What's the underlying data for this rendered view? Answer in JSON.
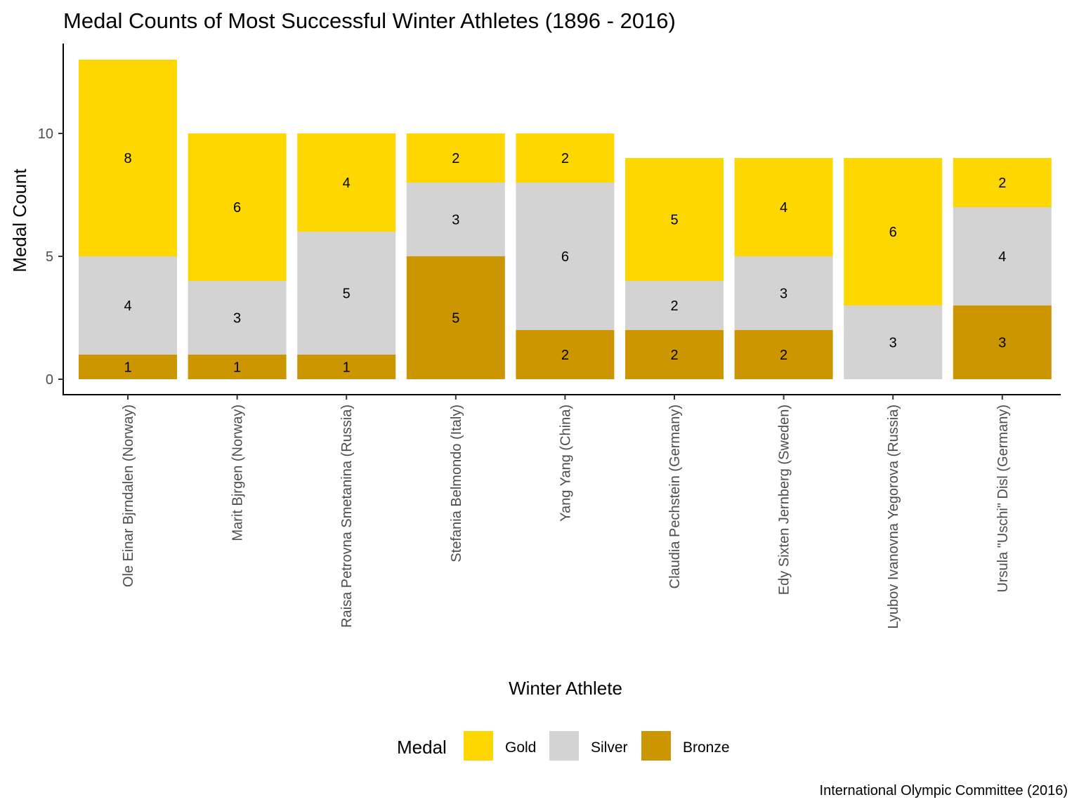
{
  "chart_data": {
    "type": "bar",
    "stacked": true,
    "title": "Medal Counts of Most Successful Winter Athletes (1896 - 2016)",
    "xlabel": "Winter Athlete",
    "ylabel": "Medal Count",
    "caption": "International Olympic Committee (2016)",
    "ylim": [
      0,
      13
    ],
    "yticks": [
      0,
      5,
      10
    ],
    "grid": false,
    "legend": {
      "title": "Medal",
      "position": "bottom"
    },
    "categories": [
      "Ole Einar Bjrndalen (Norway)",
      "Marit Bjrgen (Norway)",
      "Raisa Petrovna Smetanina (Russia)",
      "Stefania Belmondo (Italy)",
      "Yang Yang (China)",
      "Claudia Pechstein (Germany)",
      "Edy Sixten Jernberg (Sweden)",
      "Lyubov Ivanovna Yegorova (Russia)",
      "Ursula \"Uschi\" Disl (Germany)"
    ],
    "series": [
      {
        "name": "Gold",
        "color": "#FFD700",
        "values": [
          8,
          6,
          4,
          2,
          2,
          5,
          4,
          6,
          2
        ]
      },
      {
        "name": "Silver",
        "color": "#D3D3D3",
        "values": [
          4,
          3,
          5,
          3,
          6,
          2,
          3,
          3,
          4
        ]
      },
      {
        "name": "Bronze",
        "color": "#CC9600",
        "values": [
          1,
          1,
          1,
          5,
          2,
          2,
          2,
          0,
          3
        ]
      }
    ]
  }
}
